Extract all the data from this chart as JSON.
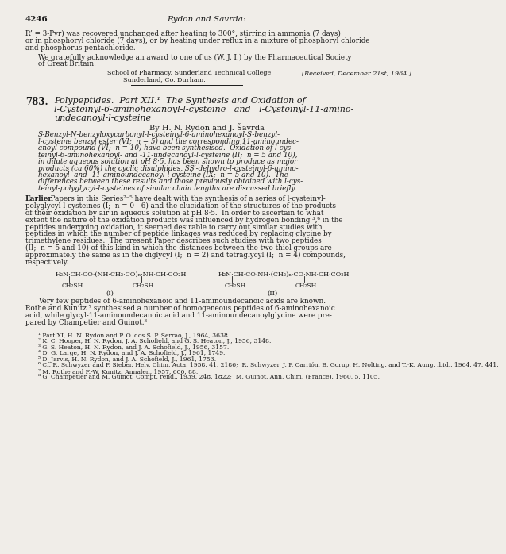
{
  "page_number": "4246",
  "header_center": "Rydon and Savrda:",
  "bg_color": "#f0ede8",
  "text_color": "#1a1a1a",
  "footnotes": [
    "¹ Part XI, H. N. Rydon and P. O. dos S. P. Serrão, J., 1964, 3638.",
    "² K. C. Hooper, H. N. Rydon, J. A. Schofield, and G. S. Heaton, J., 1956, 3148.",
    "³ G. S. Heaton, H. N. Rydon, and J. A. Schofield, J., 1956, 3157.",
    "⁴ D. G. Large, H. N. Rydon, and J. A. Schofield, J., 1961, 1749.",
    "⁵ D. Jarvis, H. N. Rydon, and J. A. Schofield, J., 1961, 1753.",
    "⁶ Cf. R. Schwyzer and P. Sieber, Helv. Chim. Acta, 1958, 41, 2186;  R. Schwyzer, J. P. Carrión, B. Gorup, H. Nolting, and T.-K. Aung, ibid., 1964, 47, 441.",
    "⁷ M. Rothe and F.-W. Kunitz, Annalen, 1957, 600, 88.",
    "⁸ G. Champetier and M. Guinot, Compt. rend., 1939, 248, 1822;  M. Guinot, Ann. Chim. (France), 1960, 5, 1105."
  ]
}
